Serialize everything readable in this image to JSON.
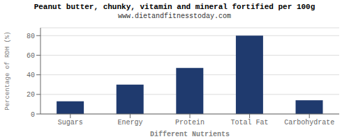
{
  "chart_data": {
    "type": "bar",
    "title": "Peanut butter, chunky, vitamin and mineral fortified per 100g",
    "subtitle": "www.dietandfitnesstoday.com",
    "categories": [
      "Sugars",
      "Energy",
      "Protein",
      "Total Fat",
      "Carbohydrate"
    ],
    "values": [
      13,
      30,
      47,
      80,
      14
    ],
    "color": "#1f3a6e",
    "xlabel": "Different Nutrients",
    "ylabel": "Percentage of RDH (%)",
    "ylim": [
      0,
      88
    ],
    "yticks": [
      0,
      20,
      40,
      60,
      80
    ],
    "grid": true
  }
}
